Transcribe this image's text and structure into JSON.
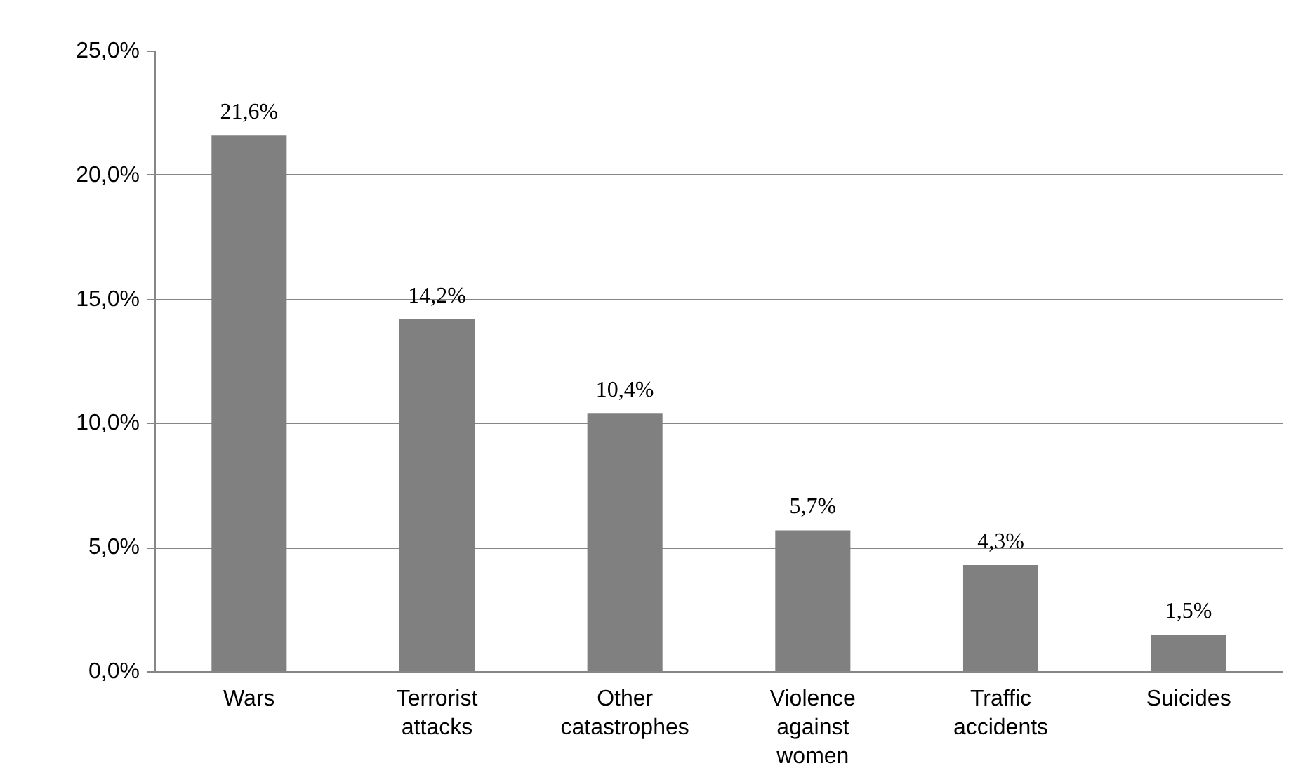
{
  "chart_data": {
    "type": "bar",
    "categories": [
      "Wars",
      "Terrorist attacks",
      "Other catastrophes",
      "Violence against women",
      "Traffic accidents",
      "Suicides"
    ],
    "values": [
      21.6,
      14.2,
      10.4,
      5.7,
      4.3,
      1.5
    ],
    "value_labels": [
      "21,6%",
      "14,2%",
      "10,4%",
      "5,7%",
      "4,3%",
      "1,5%"
    ],
    "color": "#808080",
    "ylim": [
      0,
      25
    ],
    "yticks": [
      {
        "value": 0,
        "label": "0,0%"
      },
      {
        "value": 5,
        "label": "5,0%"
      },
      {
        "value": 10,
        "label": "10,0%"
      },
      {
        "value": 15,
        "label": "15,0%"
      },
      {
        "value": 20,
        "label": "20,0%"
      },
      {
        "value": 25,
        "label": "25,0%"
      }
    ],
    "grid": "y"
  }
}
